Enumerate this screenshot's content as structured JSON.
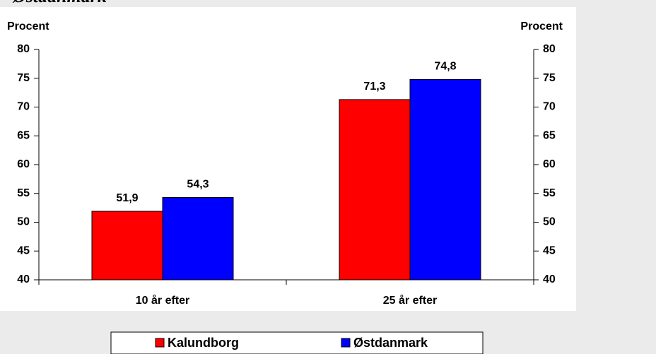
{
  "chart_data": {
    "type": "bar",
    "title": "Østdanmark",
    "ylabel": "Procent",
    "y2label": "Procent",
    "categories": [
      "10 år efter",
      "25 år efter"
    ],
    "series": [
      {
        "name": "Kalundborg",
        "color": "#ff0000",
        "values": [
          51.9,
          71.3
        ],
        "value_labels": [
          "51,9",
          "71,3"
        ]
      },
      {
        "name": "Østdanmark",
        "color": "#0000ff",
        "values": [
          54.3,
          74.8
        ],
        "value_labels": [
          "54,3",
          "74,8"
        ]
      }
    ],
    "ylim": [
      40,
      80
    ],
    "yticks": [
      40,
      45,
      50,
      55,
      60,
      65,
      70,
      75,
      80
    ],
    "y2lim": [
      40,
      80
    ],
    "y2ticks": [
      40,
      45,
      50,
      55,
      60,
      65,
      70,
      75,
      80
    ],
    "legend": "bottom"
  }
}
